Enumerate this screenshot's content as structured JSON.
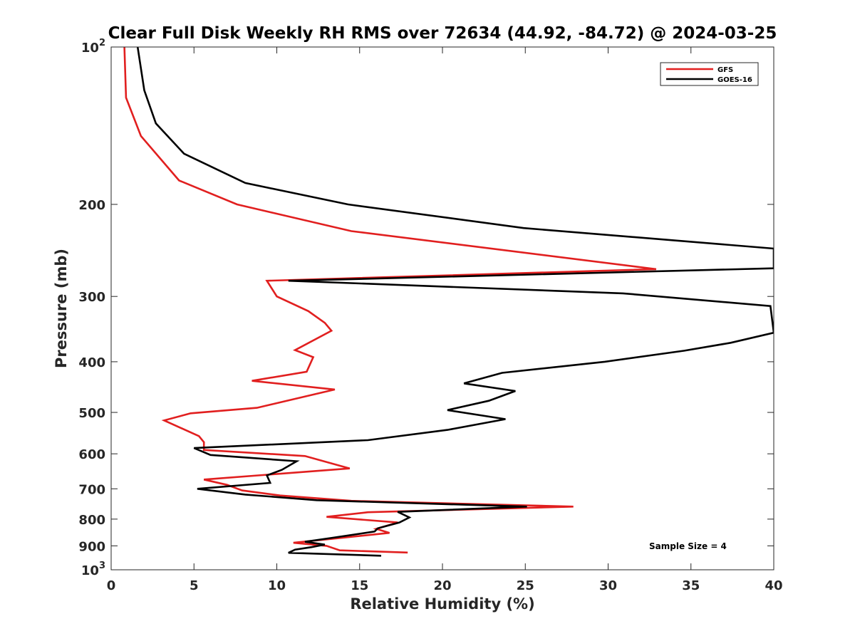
{
  "chart_data": {
    "type": "line",
    "title": "Clear Full Disk Weekly RH RMS over 72634 (44.92, -84.72) @ 2024-03-25",
    "xlabel": "Relative Humidity (%)",
    "ylabel": "Pressure (mb)",
    "xlim": [
      0,
      40
    ],
    "ylim": [
      100,
      1000
    ],
    "yscale": "log",
    "y_reversed": true,
    "grid": false,
    "legend_position": "top-right",
    "annotation": "Sample Size = 4",
    "x_ticks": [
      "0",
      "5",
      "10",
      "15",
      "20",
      "25",
      "30",
      "35",
      "40"
    ],
    "y_ticks": [
      {
        "value": 100,
        "base": "10",
        "exp": "2"
      },
      {
        "value": 200,
        "label": "200"
      },
      {
        "value": 300,
        "label": "300"
      },
      {
        "value": 400,
        "label": "400"
      },
      {
        "value": 500,
        "label": "500"
      },
      {
        "value": 600,
        "label": "600"
      },
      {
        "value": 700,
        "label": "700"
      },
      {
        "value": 800,
        "label": "800"
      },
      {
        "value": 900,
        "label": "900"
      },
      {
        "value": 1000,
        "base": "10",
        "exp": "3"
      }
    ],
    "series": [
      {
        "name": "GFS",
        "color": "#e11f1f",
        "points": [
          [
            0.8,
            100
          ],
          [
            0.9,
            125
          ],
          [
            1.8,
            148
          ],
          [
            4.1,
            180
          ],
          [
            7.6,
            200
          ],
          [
            14.5,
            225
          ],
          [
            32.9,
            266
          ],
          [
            9.4,
            280
          ],
          [
            10.0,
            300
          ],
          [
            11.9,
            320
          ],
          [
            12.9,
            337
          ],
          [
            13.3,
            349
          ],
          [
            11.1,
            380
          ],
          [
            12.2,
            392
          ],
          [
            11.8,
            418
          ],
          [
            8.5,
            435
          ],
          [
            13.5,
            452
          ],
          [
            8.8,
            490
          ],
          [
            4.8,
            502
          ],
          [
            3.2,
            518
          ],
          [
            5.3,
            555
          ],
          [
            5.6,
            570
          ],
          [
            5.6,
            590
          ],
          [
            11.7,
            606
          ],
          [
            14.4,
            640
          ],
          [
            5.6,
            672
          ],
          [
            7.0,
            688
          ],
          [
            7.9,
            705
          ],
          [
            10.2,
            721
          ],
          [
            14.5,
            738
          ],
          [
            27.9,
            757
          ],
          [
            15.5,
            776
          ],
          [
            13.0,
            792
          ],
          [
            17.3,
            812
          ],
          [
            16.0,
            835
          ],
          [
            16.8,
            850
          ],
          [
            14.0,
            868
          ],
          [
            11.0,
            888
          ],
          [
            13.0,
            900
          ],
          [
            13.8,
            918
          ],
          [
            17.9,
            927
          ]
        ]
      },
      {
        "name": "GOES-16",
        "color": "#000000",
        "points": [
          [
            1.6,
            100
          ],
          [
            2.0,
            121
          ],
          [
            2.7,
            140
          ],
          [
            4.4,
            160
          ],
          [
            8.1,
            182
          ],
          [
            14.3,
            200
          ],
          [
            24.9,
            222
          ],
          [
            40.0,
            243
          ],
          [
            40.0,
            265
          ],
          [
            10.7,
            280
          ],
          [
            30.9,
            296
          ],
          [
            39.8,
            313
          ],
          [
            40.0,
            352
          ],
          [
            37.4,
            368
          ],
          [
            34.6,
            381
          ],
          [
            29.8,
            400
          ],
          [
            23.6,
            420
          ],
          [
            21.3,
            440
          ],
          [
            24.4,
            455
          ],
          [
            22.8,
            475
          ],
          [
            20.3,
            495
          ],
          [
            23.8,
            515
          ],
          [
            20.3,
            540
          ],
          [
            15.5,
            565
          ],
          [
            5.0,
            585
          ],
          [
            6.0,
            603
          ],
          [
            11.2,
            620
          ],
          [
            10.3,
            644
          ],
          [
            9.4,
            660
          ],
          [
            9.6,
            682
          ],
          [
            5.2,
            700
          ],
          [
            8.1,
            718
          ],
          [
            12.4,
            736
          ],
          [
            25.1,
            757
          ],
          [
            17.3,
            775
          ],
          [
            18.0,
            794
          ],
          [
            17.4,
            812
          ],
          [
            16.1,
            833
          ],
          [
            15.9,
            845
          ],
          [
            13.2,
            870
          ],
          [
            11.7,
            884
          ],
          [
            12.9,
            895
          ],
          [
            12.1,
            905
          ],
          [
            11.1,
            915
          ],
          [
            10.7,
            928
          ],
          [
            16.3,
            940
          ]
        ]
      }
    ]
  }
}
